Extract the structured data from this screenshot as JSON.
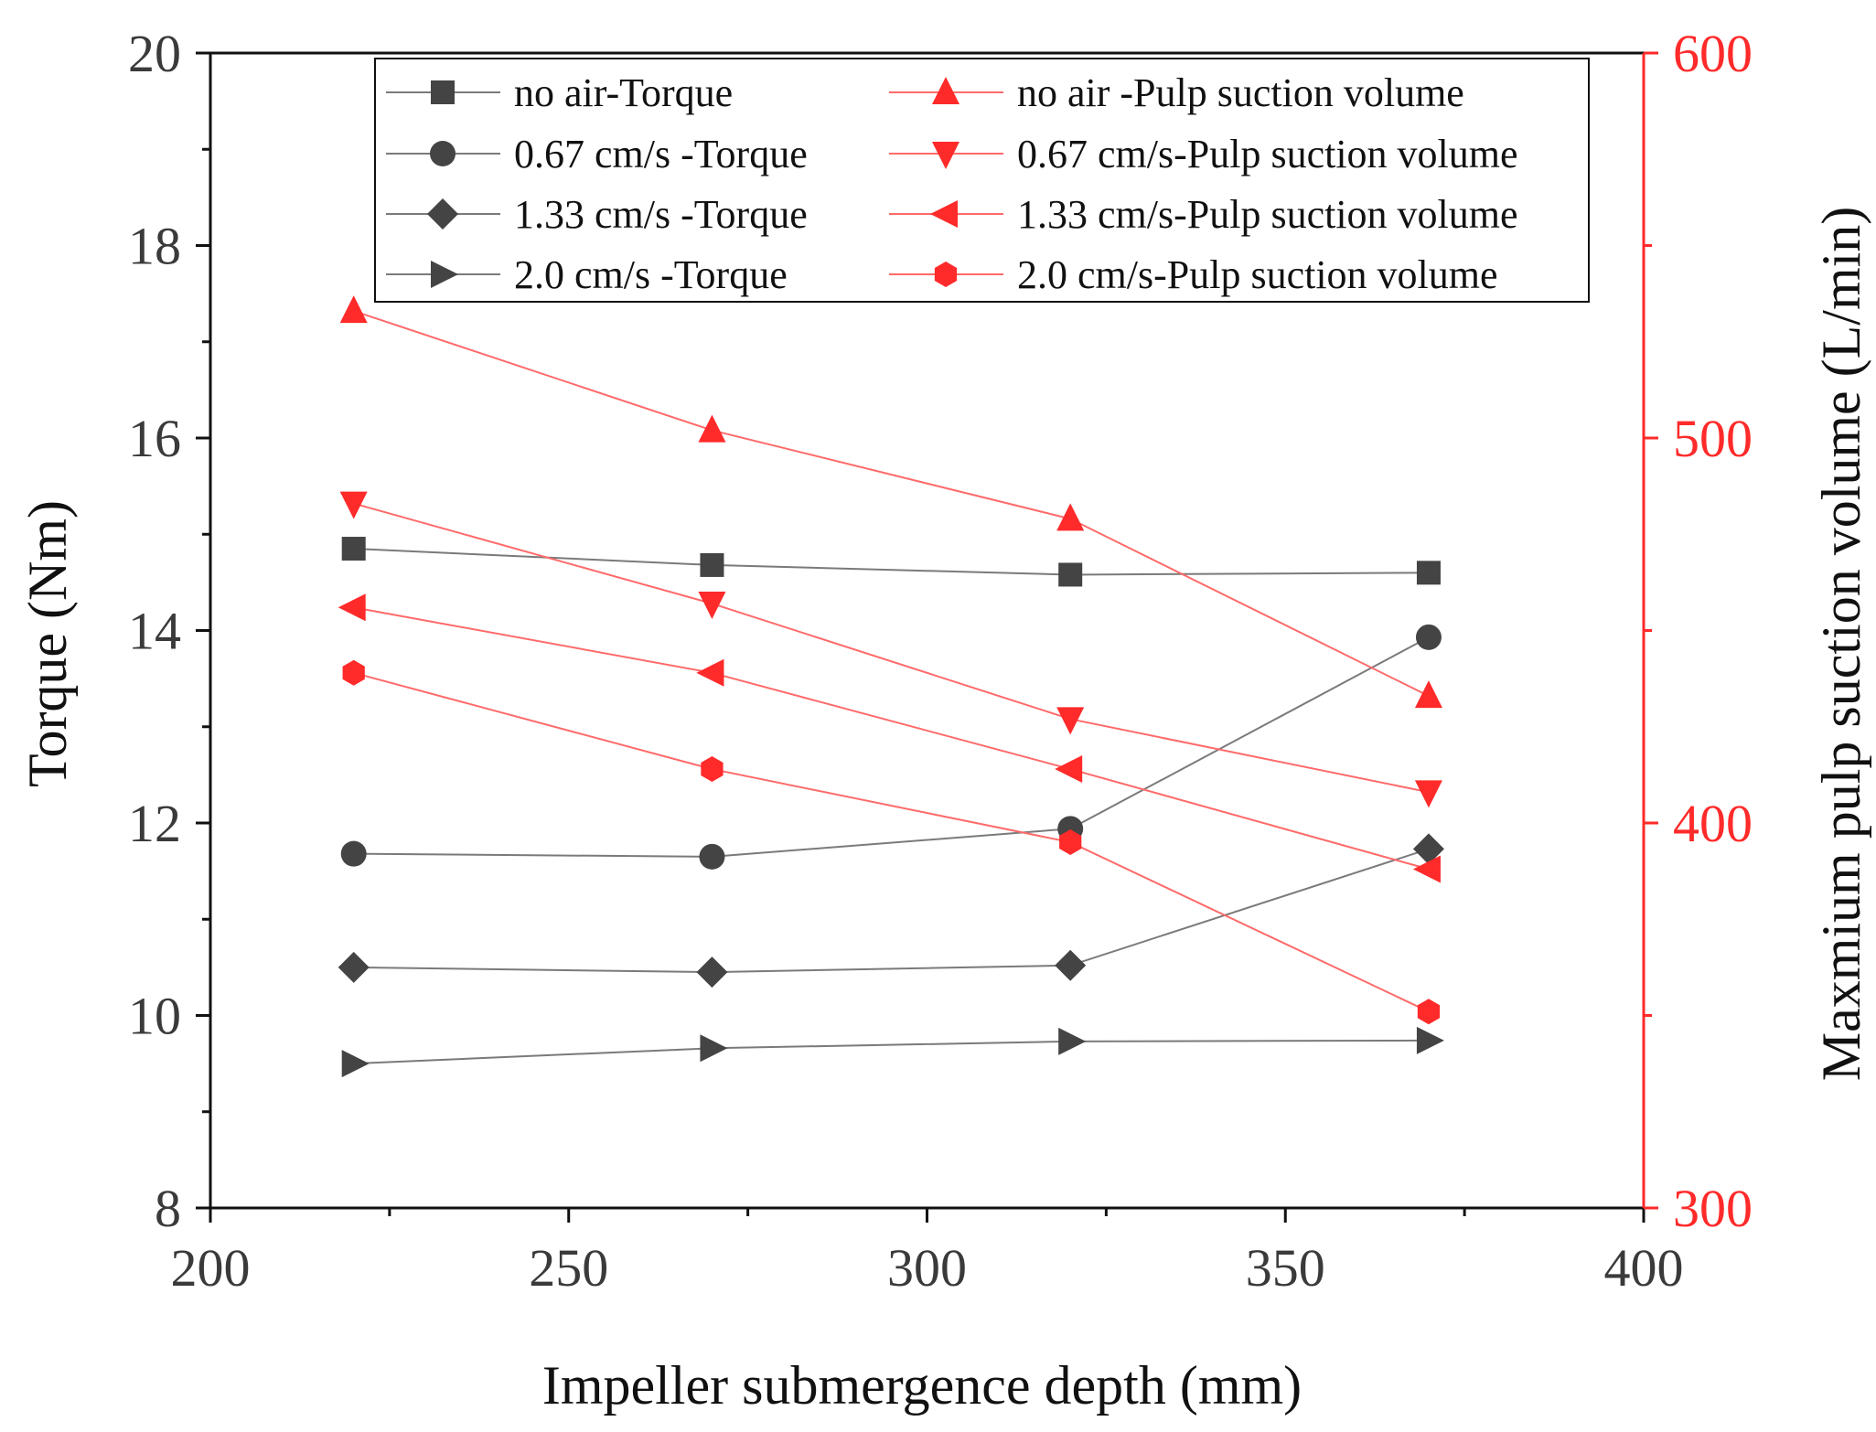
{
  "chart_data": {
    "type": "line",
    "x": [
      220,
      270,
      320,
      370
    ],
    "xlabel": "Impeller submergence depth (mm)",
    "ylabel_left": "Torque (Nm)",
    "ylabel_right": "Maxmium pulp suction volume (L/min)",
    "xlim": [
      200,
      400
    ],
    "xticks": [
      "200",
      "250",
      "300",
      "350",
      "400"
    ],
    "ylim_left": [
      8,
      20
    ],
    "yticks_left": [
      "8",
      "10",
      "12",
      "14",
      "16",
      "18",
      "20"
    ],
    "ylim_right": [
      300,
      600
    ],
    "yticks_right": [
      "300",
      "400",
      "500",
      "600"
    ],
    "grid": false,
    "legend_position": "top",
    "colors": {
      "torque": "#444444",
      "torque_line": "#7a7a7a",
      "suction": "#ff2a2a",
      "suction_line": "#ff6a6a",
      "right_axis": "#ff2a2a"
    },
    "series": [
      {
        "name": "no air-Torque",
        "axis": "left",
        "marker": "square",
        "values": [
          14.85,
          14.68,
          14.58,
          14.6
        ]
      },
      {
        "name": "0.67 cm/s -Torque",
        "axis": "left",
        "marker": "circle",
        "values": [
          11.68,
          11.65,
          11.94,
          13.93
        ]
      },
      {
        "name": "1.33 cm/s -Torque",
        "axis": "left",
        "marker": "diamond",
        "values": [
          10.5,
          10.45,
          10.52,
          11.73
        ]
      },
      {
        "name": "2.0 cm/s -Torque",
        "axis": "left",
        "marker": "triangle-right",
        "values": [
          9.5,
          9.66,
          9.73,
          9.74
        ]
      },
      {
        "name": "no air -Pulp suction volume",
        "axis": "right",
        "marker": "triangle-up",
        "values": [
          533,
          502,
          479,
          433
        ]
      },
      {
        "name": "0.67 cm/s-Pulp suction volume",
        "axis": "right",
        "marker": "triangle-down",
        "values": [
          483,
          457,
          427,
          408
        ]
      },
      {
        "name": "1.33 cm/s-Pulp suction volume",
        "axis": "right",
        "marker": "triangle-left",
        "values": [
          456,
          439,
          414,
          388
        ]
      },
      {
        "name": "2.0 cm/s-Pulp suction volume",
        "axis": "right",
        "marker": "hexagon",
        "values": [
          439,
          414,
          395,
          351
        ]
      }
    ]
  }
}
